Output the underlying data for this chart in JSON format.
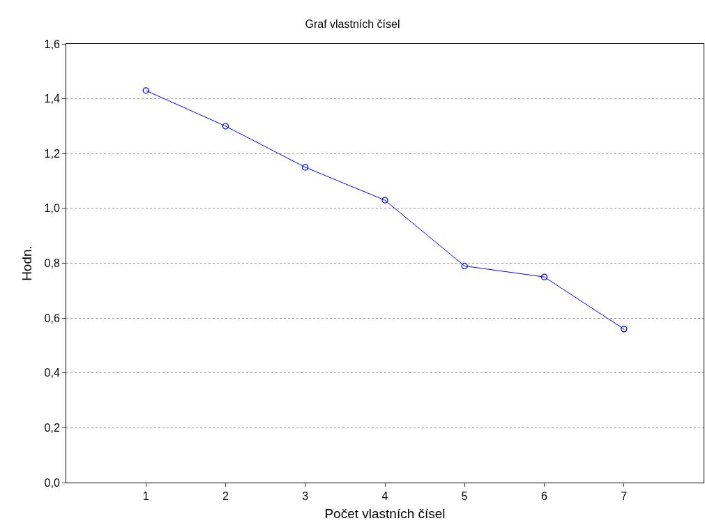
{
  "chart_data": {
    "type": "line",
    "title": "Graf vlastních čísel",
    "xlabel": "Počet vlastních čísel",
    "ylabel": "Hodn.",
    "x": [
      1,
      2,
      3,
      4,
      5,
      6,
      7
    ],
    "series": [
      {
        "color": "#0000ff",
        "values": [
          1.43,
          1.3,
          1.15,
          1.03,
          0.79,
          0.75,
          0.56
        ]
      }
    ],
    "xlim": [
      0,
      8
    ],
    "xticks": [
      1,
      2,
      3,
      4,
      5,
      6,
      7
    ],
    "ylim": [
      0,
      1.6
    ],
    "yticks": [
      {
        "value": 0,
        "label": "0,0"
      },
      {
        "value": 0.2,
        "label": "0,2"
      },
      {
        "value": 0.4,
        "label": "0,4"
      },
      {
        "value": 0.6,
        "label": "0,6"
      },
      {
        "value": 0.8,
        "label": "0,8"
      },
      {
        "value": 1.0,
        "label": "1,0"
      },
      {
        "value": 1.2,
        "label": "1,2"
      },
      {
        "value": 1.4,
        "label": "1,4"
      },
      {
        "value": 1.6,
        "label": "1,6"
      }
    ],
    "grid": "y",
    "marker": "circle",
    "line_style": "solid",
    "legend": false
  }
}
